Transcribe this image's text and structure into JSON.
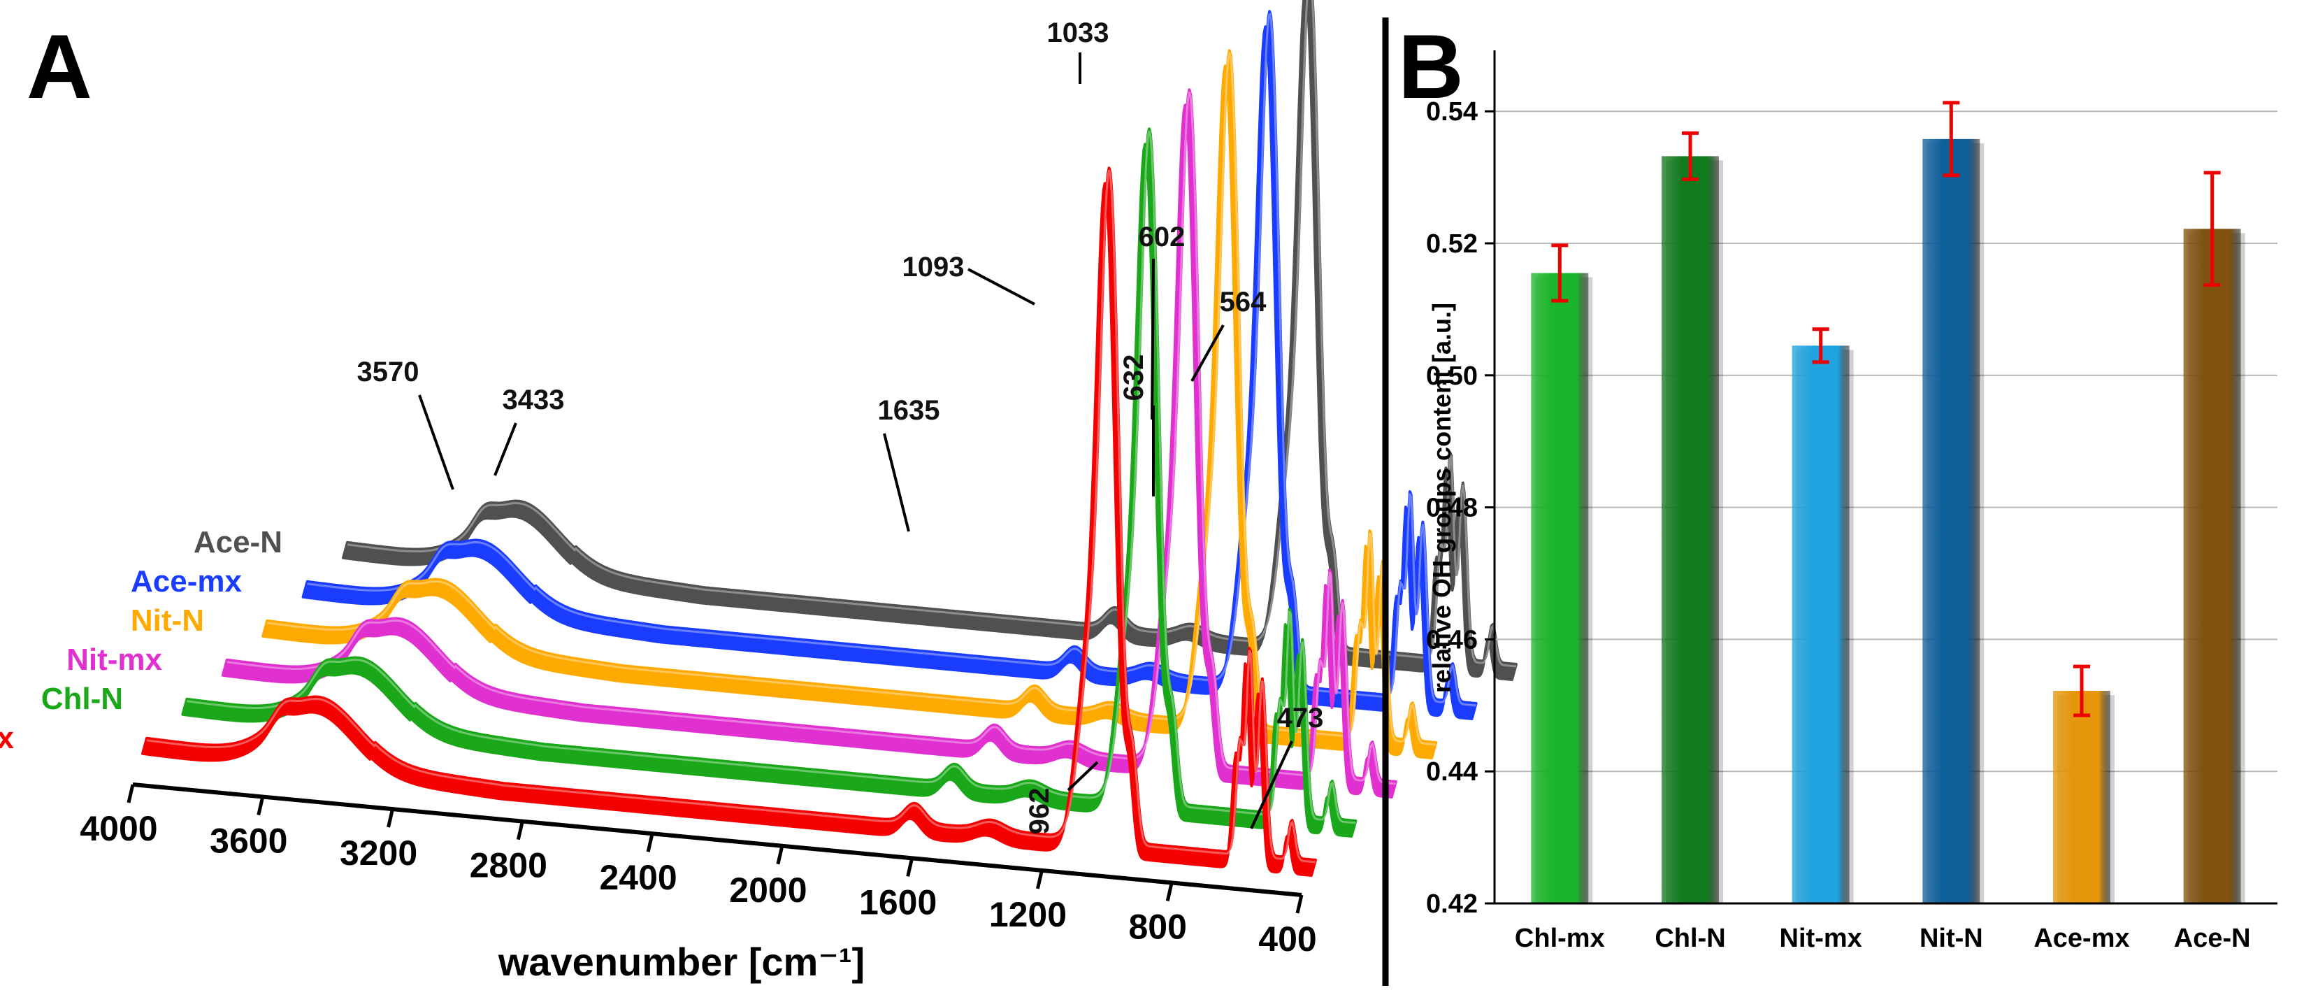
{
  "panels": {
    "a_letter": "A",
    "b_letter": "B"
  },
  "chart_data": [
    {
      "panel": "A",
      "type": "line",
      "subtype": "stacked 3D FTIR spectra",
      "xlabel": "wavenumber [cm⁻¹]",
      "xlim": [
        4000,
        400
      ],
      "xticks": [
        "4000",
        "3600",
        "3200",
        "2800",
        "2400",
        "2000",
        "1600",
        "1200",
        "800",
        "400"
      ],
      "series": [
        {
          "name": "Chl-mx",
          "color": "#f40000"
        },
        {
          "name": "Chl-N",
          "color": "#1aa81a"
        },
        {
          "name": "Nit-mx",
          "color": "#e030cf"
        },
        {
          "name": "Nit-N",
          "color": "#ffaa00"
        },
        {
          "name": "Ace-mx",
          "color": "#1a3cff"
        },
        {
          "name": "Ace-N",
          "color": "#505050"
        }
      ],
      "peak_annotations": [
        "3570",
        "3433",
        "1635",
        "1093",
        "1033",
        "632",
        "602",
        "564",
        "962",
        "473"
      ]
    },
    {
      "panel": "B",
      "type": "bar",
      "ylabel": "relative OH groups content [a.u.]",
      "ylim": [
        0.42,
        0.545
      ],
      "yticks": [
        "0.42",
        "0.44",
        "0.46",
        "0.48",
        "0.50",
        "0.52",
        "0.54"
      ],
      "categories": [
        "Chl-mx",
        "Chl-N",
        "Nit-mx",
        "Nit-N",
        "Ace-mx",
        "Ace-N"
      ],
      "values": [
        0.5155,
        0.5332,
        0.5045,
        0.5358,
        0.4522,
        0.5222
      ],
      "errors": [
        0.0042,
        0.0035,
        0.0025,
        0.0055,
        0.0037,
        0.0085
      ],
      "colors": [
        "#1ab52a",
        "#127a1e",
        "#20a3de",
        "#0f5f9a",
        "#e6960a",
        "#80510f"
      ],
      "error_color": "#ee0000",
      "grid": true
    }
  ]
}
